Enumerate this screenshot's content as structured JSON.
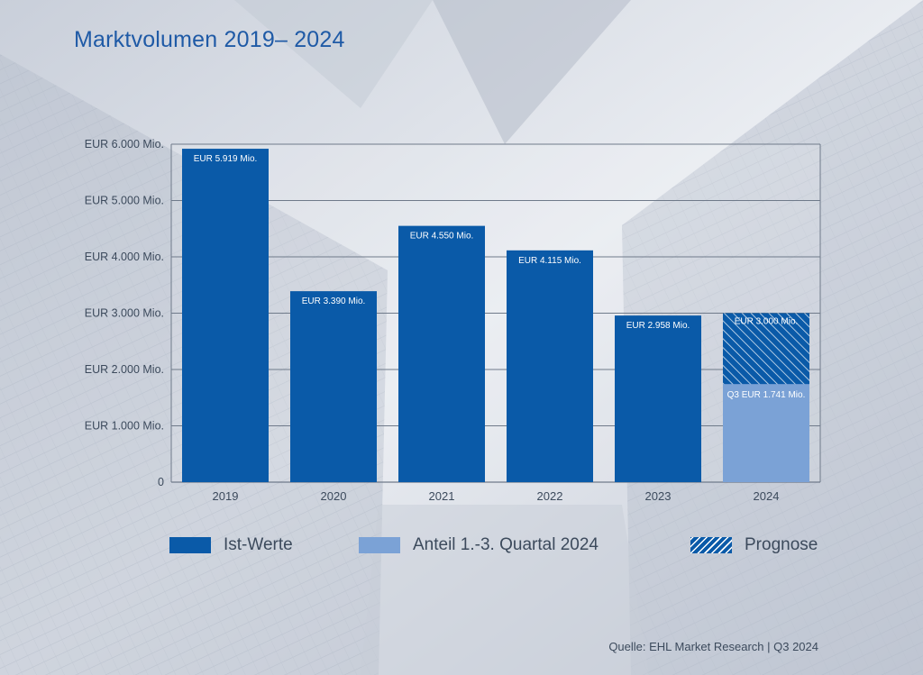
{
  "title": "Marktvolumen 2019– 2024",
  "source": "Quelle: EHL Market Research | Q3 2024",
  "colors": {
    "primary": "#0a5aa8",
    "light": "#7ba2d6",
    "title": "#1f5aa6",
    "text": "#3c4a5c"
  },
  "legend": {
    "ist": "Ist-Werte",
    "anteil": "Anteil  1.-3. Quartal 2024",
    "prognose": "Prognose"
  },
  "chart_data": {
    "type": "bar",
    "title": "Marktvolumen 2019– 2024",
    "categories": [
      "2019",
      "2020",
      "2021",
      "2022",
      "2023",
      "2024"
    ],
    "series": [
      {
        "name": "Ist-Werte",
        "values": [
          5919,
          3390,
          4550,
          4115,
          2958,
          null
        ]
      },
      {
        "name": "Anteil  1.-3. Quartal 2024",
        "values": [
          null,
          null,
          null,
          null,
          null,
          1741
        ]
      },
      {
        "name": "Prognose",
        "values": [
          null,
          null,
          null,
          null,
          null,
          3000
        ]
      }
    ],
    "bar_labels": [
      "EUR 5.919 Mio.",
      "EUR 3.390 Mio.",
      "EUR 4.550 Mio.",
      "EUR 4.115 Mio.",
      "EUR 2.958 Mio.",
      "EUR 3.000 Mio."
    ],
    "q3_label": "Q3 EUR 1.741 Mio.",
    "y_ticks": [
      0,
      1000,
      2000,
      3000,
      4000,
      5000,
      6000
    ],
    "y_tick_labels": [
      "0",
      "EUR 1.000 Mio.",
      "EUR 2.000 Mio.",
      "EUR 3.000 Mio.",
      "EUR 4.000 Mio.",
      "EUR 5.000 Mio.",
      "EUR 6.000 Mio."
    ],
    "ylim": [
      0,
      6000
    ],
    "xlabel": "",
    "ylabel": "",
    "grid": true
  }
}
